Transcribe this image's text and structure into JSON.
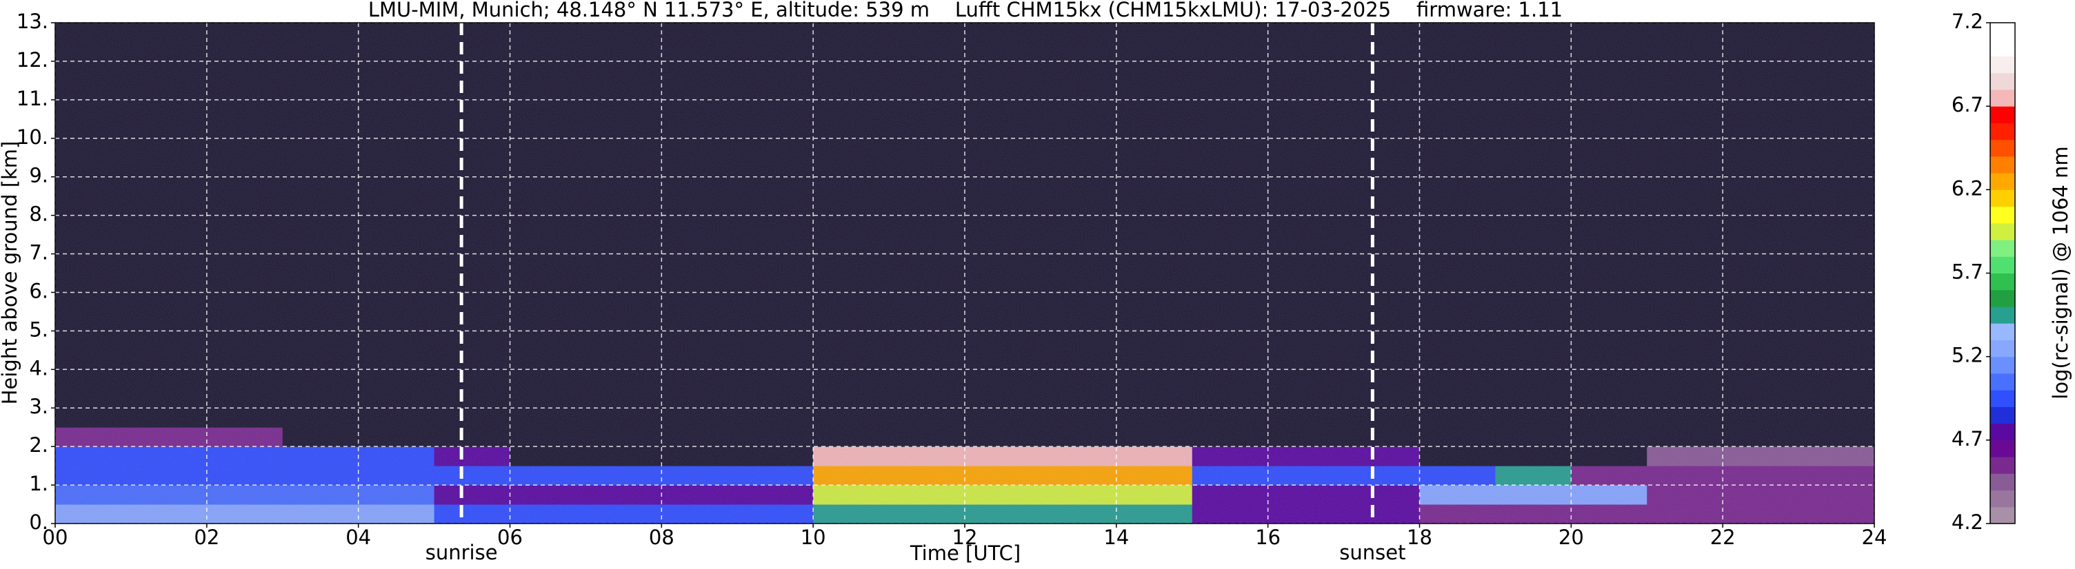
{
  "chart_data": {
    "type": "heatmap",
    "title": "LMU-MIM, Munich; 48.148° N 11.573° E, altitude: 539 m    Lufft CHM15kx (CHM15kxLMU): 17-03-2025    firmware: 1.11",
    "xlabel": "Time [UTC]",
    "ylabel": "Height above ground [km]",
    "colorbar_label": "log(rc-signal) @ 1064 nm",
    "xlim": [
      0,
      24
    ],
    "xticks": [
      {
        "value": 0,
        "label": "00"
      },
      {
        "value": 2,
        "label": "02"
      },
      {
        "value": 4,
        "label": "04"
      },
      {
        "value": 6,
        "label": "06"
      },
      {
        "value": 8,
        "label": "08"
      },
      {
        "value": 10,
        "label": "10"
      },
      {
        "value": 12,
        "label": "12"
      },
      {
        "value": 14,
        "label": "14"
      },
      {
        "value": 16,
        "label": "16"
      },
      {
        "value": 18,
        "label": "18"
      },
      {
        "value": 20,
        "label": "20"
      },
      {
        "value": 22,
        "label": "22"
      },
      {
        "value": 24,
        "label": "24"
      }
    ],
    "ylim": [
      0,
      13
    ],
    "yticks": [
      {
        "value": 0,
        "label": "0."
      },
      {
        "value": 1,
        "label": "1."
      },
      {
        "value": 2,
        "label": "2."
      },
      {
        "value": 3,
        "label": "3."
      },
      {
        "value": 4,
        "label": "4."
      },
      {
        "value": 5,
        "label": "5."
      },
      {
        "value": 6,
        "label": "6."
      },
      {
        "value": 7,
        "label": "7."
      },
      {
        "value": 8,
        "label": "8."
      },
      {
        "value": 9,
        "label": "9."
      },
      {
        "value": 10,
        "label": "10."
      },
      {
        "value": 11,
        "label": "11."
      },
      {
        "value": 12,
        "label": "12."
      },
      {
        "value": 13,
        "label": "13."
      }
    ],
    "grid": true,
    "xbins": [
      0,
      1,
      2,
      3,
      4,
      5,
      6,
      7,
      8,
      9,
      10,
      11,
      12,
      13,
      14,
      15,
      16,
      17,
      18,
      19,
      20,
      21,
      22,
      23,
      24
    ],
    "ybins": [
      0,
      0.5,
      1,
      1.5,
      2,
      2.5,
      13
    ],
    "z": [
      [
        5.2,
        5.2,
        5.2,
        5.2,
        5.2,
        5.0,
        5.0,
        5.0,
        5.0,
        5.0,
        5.5,
        5.5,
        5.5,
        5.5,
        5.5,
        4.8,
        4.8,
        4.8,
        4.6,
        4.6,
        4.6,
        4.6,
        4.6,
        4.6
      ],
      [
        5.1,
        5.1,
        5.1,
        5.1,
        5.1,
        4.8,
        4.8,
        4.8,
        4.8,
        4.8,
        5.9,
        5.9,
        5.9,
        5.9,
        5.9,
        4.8,
        4.8,
        4.8,
        5.3,
        5.3,
        5.3,
        4.6,
        4.6,
        4.6
      ],
      [
        5.0,
        5.0,
        5.0,
        5.0,
        5.0,
        5.0,
        5.0,
        5.0,
        5.0,
        5.0,
        6.2,
        6.2,
        6.2,
        6.2,
        6.2,
        4.9,
        4.9,
        4.9,
        4.9,
        5.4,
        4.6,
        4.6,
        4.6,
        4.6
      ],
      [
        4.9,
        4.9,
        4.9,
        4.9,
        4.9,
        4.8,
        4.0,
        4.0,
        4.0,
        4.0,
        6.8,
        6.8,
        6.8,
        6.8,
        6.8,
        4.8,
        4.8,
        4.8,
        4.0,
        4.0,
        4.0,
        4.5,
        4.5,
        4.5
      ],
      [
        4.6,
        4.6,
        4.6,
        4.0,
        4.0,
        4.0,
        4.0,
        4.0,
        4.0,
        4.0,
        4.0,
        4.0,
        4.0,
        4.0,
        4.0,
        4.0,
        4.0,
        4.0,
        4.0,
        4.0,
        4.0,
        4.0,
        4.0,
        4.0
      ],
      [
        4.0,
        4.0,
        4.0,
        4.0,
        4.0,
        4.0,
        4.0,
        4.0,
        4.0,
        4.0,
        4.0,
        4.0,
        4.0,
        4.0,
        4.0,
        4.0,
        4.0,
        4.0,
        4.0,
        4.0,
        4.0,
        4.0,
        4.0,
        4.0
      ]
    ],
    "clim": [
      4.2,
      7.2
    ],
    "cticks": [
      4.2,
      4.7,
      5.2,
      5.7,
      6.2,
      6.7,
      7.2
    ],
    "under_color": "#1c1830",
    "colors": [
      "#a890a8",
      "#98769e",
      "#8a5c96",
      "#7a2a8e",
      "#6a0a94",
      "#5a0aa0",
      "#2030d8",
      "#3050ff",
      "#4a70ff",
      "#6a90ff",
      "#88a8ff",
      "#98b8ff",
      "#28a090",
      "#20a040",
      "#30c050",
      "#50e070",
      "#80f080",
      "#d0f040",
      "#ffff20",
      "#ffd000",
      "#ffa800",
      "#ff8000",
      "#ff5000",
      "#ff2000",
      "#ff0000",
      "#f4b8b8",
      "#f0d8d8",
      "#f8eeee",
      "#ffffff",
      "#ffffff"
    ],
    "annotations": [
      {
        "x": 5.36,
        "label": "sunrise"
      },
      {
        "x": 17.38,
        "label": "sunset"
      }
    ]
  }
}
